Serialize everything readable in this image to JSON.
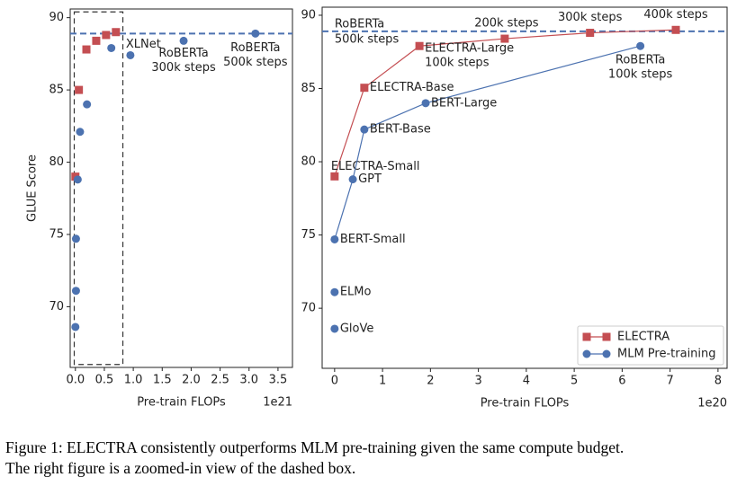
{
  "chart_data": [
    {
      "type": "scatter",
      "xlabel": "Pre-train FLOPs",
      "ylabel": "GLUE Score",
      "x_offset_label": "1e21",
      "xlim": [
        -0.09,
        3.75
      ],
      "ylim": [
        65.8,
        90.6
      ],
      "xticks": [
        {
          "value": 0,
          "label": "0.0"
        },
        0.5,
        {
          "value": 1,
          "label": "1.0"
        },
        1.5,
        {
          "value": 2,
          "label": "2.0"
        },
        2.5,
        {
          "value": 3,
          "label": "3.0"
        },
        3.5
      ],
      "yticks": [
        70,
        75,
        80,
        85,
        90
      ],
      "reference_line": {
        "y": 88.9,
        "color": "#4c72b0"
      },
      "highlight_box": {
        "x": [
          -0.02,
          0.82
        ],
        "y": [
          66.0,
          90.4
        ],
        "color": "#333333"
      },
      "series": [
        {
          "name": "ELECTRA",
          "color": "#c44e52",
          "marker": "square",
          "x": [
            0.0,
            0.06,
            0.19,
            0.36,
            0.53,
            0.7
          ],
          "values": [
            79.0,
            85.0,
            87.8,
            88.4,
            88.8,
            89.0
          ],
          "labels": [
            null,
            null,
            null,
            null,
            null,
            null
          ]
        },
        {
          "name": "MLM Pre-training",
          "color": "#4c72b0",
          "marker": "circle",
          "x": [
            0.0,
            0.01,
            0.01,
            0.04,
            0.08,
            0.2,
            0.62,
            0.95,
            1.87,
            3.11
          ],
          "values": [
            68.6,
            71.1,
            74.7,
            78.8,
            82.1,
            84.0,
            87.9,
            87.4,
            88.4,
            88.9
          ],
          "labels": [
            null,
            null,
            null,
            null,
            null,
            null,
            null,
            [
              "XLNet"
            ],
            [
              "RoBERTa",
              "300k steps"
            ],
            [
              "RoBERTa",
              "500k steps"
            ]
          ]
        }
      ]
    },
    {
      "type": "line",
      "xlabel": "Pre-train FLOPs",
      "x_offset_label": "1e20",
      "xlim": [
        -0.26,
        8.19
      ],
      "ylim": [
        65.9,
        90.55
      ],
      "xticks": [
        0,
        1,
        2,
        3,
        4,
        5,
        6,
        7,
        8
      ],
      "yticks": [
        70,
        75,
        80,
        85,
        90
      ],
      "reference_line": {
        "y": 88.9,
        "color": "#4c72b0",
        "label": [
          "RoBERTa",
          "500k steps"
        ]
      },
      "legend": "lower right",
      "series": [
        {
          "name": "ELECTRA",
          "color": "#c44e52",
          "marker": "square",
          "x": [
            0.0,
            0.62,
            1.77,
            3.55,
            5.33,
            7.12
          ],
          "values": [
            79.0,
            85.05,
            87.9,
            88.4,
            88.8,
            89.0
          ],
          "labels": [
            [
              "ELECTRA-Small"
            ],
            [
              "ELECTRA-Base"
            ],
            [
              "ELECTRA-Large",
              "100k steps"
            ],
            [
              "200k steps"
            ],
            [
              "300k steps"
            ],
            [
              "400k steps"
            ]
          ]
        },
        {
          "name": "MLM Pre-training",
          "color": "#4c72b0",
          "marker": "circle",
          "x": [
            0.0,
            null,
            0.0,
            null,
            0.0,
            0.38,
            0.62,
            1.9,
            6.38
          ],
          "values": [
            68.6,
            null,
            71.1,
            null,
            74.7,
            78.8,
            82.2,
            84.0,
            87.9
          ],
          "labels": [
            [
              "GloVe"
            ],
            null,
            [
              "ELMo"
            ],
            null,
            [
              "BERT-Small"
            ],
            [
              "GPT"
            ],
            [
              "BERT-Base"
            ],
            [
              "BERT-Large"
            ],
            [
              "RoBERTa",
              "100k steps"
            ]
          ]
        }
      ]
    }
  ],
  "caption": [
    "Figure 1: ELECTRA consistently outperforms MLM pre-training given the same compute budget.",
    "The right figure is a zoomed-in view of the dashed box."
  ]
}
